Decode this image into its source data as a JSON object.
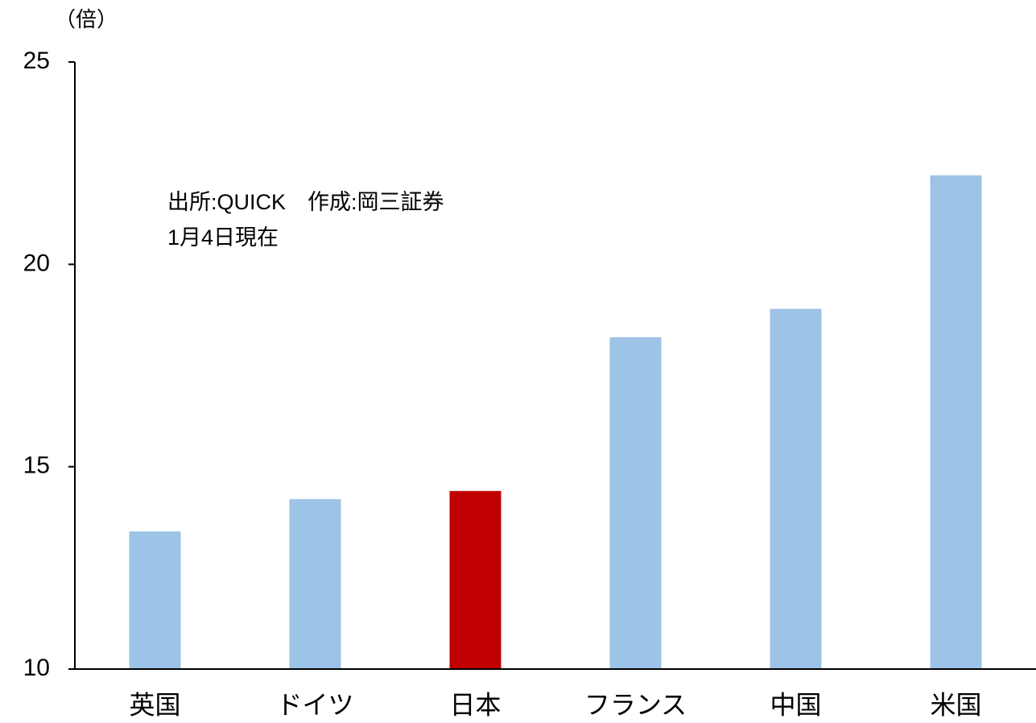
{
  "chart_data": {
    "type": "bar",
    "y_unit": "（倍）",
    "annotations": [
      "出所:QUICK　作成:岡三証券",
      "1月4日現在"
    ],
    "categories": [
      "英国",
      "ドイツ",
      "日本",
      "フランス",
      "中国",
      "米国"
    ],
    "values": [
      13.4,
      14.2,
      14.4,
      18.2,
      18.9,
      22.2
    ],
    "colors": [
      "#9dc3e6",
      "#9dc3e6",
      "#c00000",
      "#9dc3e6",
      "#9dc3e6",
      "#9dc3e6"
    ],
    "ylim": [
      10,
      25
    ],
    "yticks": [
      10,
      15,
      20,
      25
    ],
    "grid": false
  }
}
